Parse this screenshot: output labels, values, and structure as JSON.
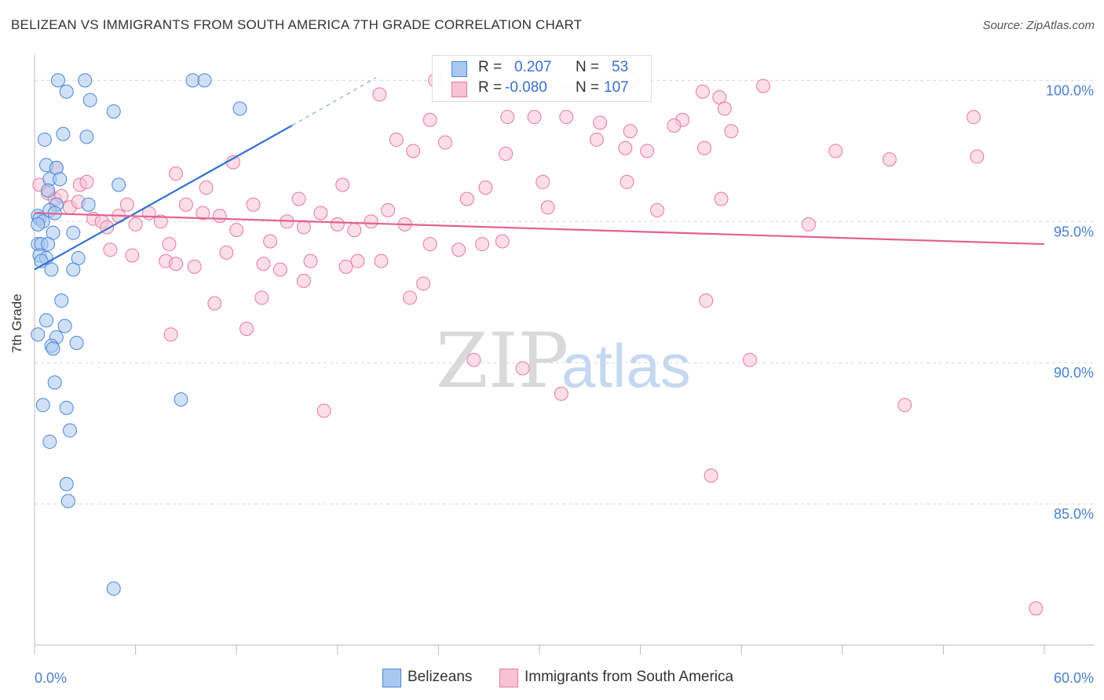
{
  "title": "BELIZEAN VS IMMIGRANTS FROM SOUTH AMERICA 7TH GRADE CORRELATION CHART",
  "source": "Source: ZipAtlas.com",
  "watermark": {
    "zip": "ZIP",
    "atlas": "atlas"
  },
  "legend": {
    "rows": [
      {
        "r_label": "R =",
        "r_value": "0.207",
        "n_label": "N =",
        "n_value": "53"
      },
      {
        "r_label": "R =",
        "r_value": "-0.080",
        "n_label": "N =",
        "n_value": "107"
      }
    ]
  },
  "bottom_legend": {
    "series1": "Belizeans",
    "series2": "Immigrants from South America"
  },
  "colors": {
    "blue_fill": "#a9c8f0",
    "blue_stroke": "#4a86d8",
    "blue_line": "#2f72d0",
    "pink_fill": "#f7c3d4",
    "pink_stroke": "#e8799c",
    "pink_line": "#e2628c",
    "tick_label": "#4a7fd0",
    "grid": "#d8d8d8"
  },
  "chart_data": {
    "type": "scatter",
    "title": "BELIZEAN VS IMMIGRANTS FROM SOUTH AMERICA 7TH GRADE CORRELATION CHART",
    "xlabel": "",
    "ylabel": "7th Grade",
    "xlim": [
      0,
      60
    ],
    "ylim": [
      80.0,
      100.9
    ],
    "x_tick_labels": [
      "0.0%",
      "60.0%"
    ],
    "y_ticks": [
      85,
      90,
      95,
      100
    ],
    "y_tick_labels": [
      "85.0%",
      "90.0%",
      "95.0%",
      "100.0%"
    ],
    "grid": true,
    "legend_position": "top-center",
    "series": [
      {
        "name": "Belizeans",
        "points": [
          [
            1.4,
            100
          ],
          [
            3.0,
            100
          ],
          [
            9.4,
            100
          ],
          [
            10.1,
            100
          ],
          [
            3.3,
            99.3
          ],
          [
            1.9,
            99.6
          ],
          [
            4.7,
            98.9
          ],
          [
            12.2,
            99.0
          ],
          [
            0.6,
            97.9
          ],
          [
            1.7,
            98.1
          ],
          [
            3.1,
            98.0
          ],
          [
            0.7,
            97.0
          ],
          [
            1.3,
            96.9
          ],
          [
            0.9,
            96.5
          ],
          [
            1.5,
            96.5
          ],
          [
            5.0,
            96.3
          ],
          [
            0.8,
            96.1
          ],
          [
            1.3,
            95.6
          ],
          [
            3.2,
            95.6
          ],
          [
            0.9,
            95.4
          ],
          [
            1.2,
            95.3
          ],
          [
            0.2,
            95.2
          ],
          [
            0.3,
            95.1
          ],
          [
            0.5,
            95.0
          ],
          [
            0.2,
            94.9
          ],
          [
            1.1,
            94.6
          ],
          [
            2.3,
            94.6
          ],
          [
            0.2,
            94.2
          ],
          [
            0.4,
            94.2
          ],
          [
            0.8,
            94.2
          ],
          [
            0.3,
            93.8
          ],
          [
            0.7,
            93.7
          ],
          [
            0.4,
            93.6
          ],
          [
            2.6,
            93.7
          ],
          [
            1.0,
            93.3
          ],
          [
            2.3,
            93.3
          ],
          [
            1.6,
            92.2
          ],
          [
            0.7,
            91.5
          ],
          [
            1.8,
            91.3
          ],
          [
            0.2,
            91.0
          ],
          [
            1.3,
            90.9
          ],
          [
            1.0,
            90.6
          ],
          [
            2.5,
            90.7
          ],
          [
            1.1,
            90.5
          ],
          [
            1.2,
            89.3
          ],
          [
            0.5,
            88.5
          ],
          [
            1.9,
            88.4
          ],
          [
            8.7,
            88.7
          ],
          [
            2.1,
            87.6
          ],
          [
            0.9,
            87.2
          ],
          [
            1.9,
            85.7
          ],
          [
            2.0,
            85.1
          ],
          [
            4.7,
            82.0
          ]
        ]
      },
      {
        "name": "Immigrants from South America",
        "points": [
          [
            0.3,
            96.3
          ],
          [
            0.8,
            96.0
          ],
          [
            1.2,
            95.8
          ],
          [
            1.6,
            95.9
          ],
          [
            2.1,
            95.5
          ],
          [
            2.6,
            95.7
          ],
          [
            3.5,
            95.1
          ],
          [
            4.0,
            95.0
          ],
          [
            4.3,
            94.8
          ],
          [
            5.0,
            95.2
          ],
          [
            5.5,
            95.6
          ],
          [
            6.0,
            94.9
          ],
          [
            6.8,
            95.3
          ],
          [
            7.5,
            95.0
          ],
          [
            8.0,
            94.2
          ],
          [
            9.0,
            95.6
          ],
          [
            10.0,
            95.3
          ],
          [
            11.0,
            95.2
          ],
          [
            12.0,
            94.7
          ],
          [
            13.0,
            95.6
          ],
          [
            14.0,
            94.3
          ],
          [
            15.0,
            95.0
          ],
          [
            16.0,
            94.8
          ],
          [
            17.0,
            95.3
          ],
          [
            18.0,
            94.9
          ],
          [
            19.0,
            94.7
          ],
          [
            20.0,
            95.0
          ],
          [
            21.0,
            95.4
          ],
          [
            22.0,
            94.9
          ],
          [
            4.5,
            94.0
          ],
          [
            5.8,
            93.8
          ],
          [
            7.8,
            93.6
          ],
          [
            8.4,
            93.5
          ],
          [
            9.5,
            93.4
          ],
          [
            11.4,
            93.9
          ],
          [
            13.6,
            93.5
          ],
          [
            14.6,
            93.3
          ],
          [
            16.4,
            93.6
          ],
          [
            18.5,
            93.4
          ],
          [
            20.6,
            93.6
          ],
          [
            22.3,
            92.3
          ],
          [
            23.5,
            94.2
          ],
          [
            25.2,
            94.0
          ],
          [
            26.6,
            94.2
          ],
          [
            27.8,
            94.3
          ],
          [
            10.7,
            92.1
          ],
          [
            12.6,
            91.2
          ],
          [
            13.5,
            92.3
          ],
          [
            8.1,
            91.0
          ],
          [
            16.0,
            92.9
          ],
          [
            19.2,
            93.6
          ],
          [
            23.1,
            92.8
          ],
          [
            20.5,
            99.5
          ],
          [
            21.5,
            97.9
          ],
          [
            22.5,
            97.5
          ],
          [
            23.5,
            98.6
          ],
          [
            24.4,
            97.8
          ],
          [
            26.8,
            96.2
          ],
          [
            28.1,
            98.7
          ],
          [
            29.7,
            98.7
          ],
          [
            30.2,
            96.4
          ],
          [
            31.6,
            98.7
          ],
          [
            33.6,
            98.5
          ],
          [
            35.1,
            97.6
          ],
          [
            36.4,
            97.5
          ],
          [
            33.4,
            97.9
          ],
          [
            35.5,
            100
          ],
          [
            39.8,
            97.6
          ],
          [
            40.7,
            99.4
          ],
          [
            41.0,
            99.0
          ],
          [
            41.4,
            98.2
          ],
          [
            43.3,
            99.8
          ],
          [
            47.6,
            97.5
          ],
          [
            50.8,
            97.2
          ],
          [
            55.8,
            98.7
          ],
          [
            56.0,
            97.3
          ],
          [
            1.3,
            96.9
          ],
          [
            2.7,
            96.3
          ],
          [
            3.1,
            96.4
          ],
          [
            8.4,
            96.7
          ],
          [
            10.2,
            96.2
          ],
          [
            11.8,
            97.1
          ],
          [
            15.7,
            95.8
          ],
          [
            18.3,
            96.3
          ],
          [
            28.0,
            97.4
          ],
          [
            31.7,
            99.6
          ],
          [
            34.3,
            99.9
          ],
          [
            35.2,
            96.4
          ],
          [
            23.8,
            100
          ],
          [
            35.4,
            98.2
          ],
          [
            38.5,
            98.6
          ],
          [
            39.7,
            99.6
          ],
          [
            40.8,
            95.8
          ],
          [
            39.9,
            92.2
          ],
          [
            26.1,
            90.1
          ],
          [
            31.3,
            88.9
          ],
          [
            29.0,
            89.8
          ],
          [
            17.2,
            88.3
          ],
          [
            40.2,
            86.0
          ],
          [
            42.5,
            90.1
          ],
          [
            51.7,
            88.5
          ],
          [
            59.5,
            81.3
          ],
          [
            37.0,
            95.4
          ],
          [
            46.0,
            94.9
          ],
          [
            30.5,
            95.5
          ],
          [
            25.7,
            95.8
          ],
          [
            38.0,
            98.4
          ]
        ]
      }
    ],
    "trend_lines": [
      {
        "series": "Belizeans",
        "solid": [
          [
            0,
            93.3
          ],
          [
            15.3,
            98.4
          ]
        ],
        "dashed": [
          [
            15.3,
            98.4
          ],
          [
            20.3,
            100.1
          ]
        ]
      },
      {
        "series": "Immigrants from South America",
        "solid": [
          [
            0,
            95.3
          ],
          [
            60,
            94.2
          ]
        ]
      }
    ]
  }
}
